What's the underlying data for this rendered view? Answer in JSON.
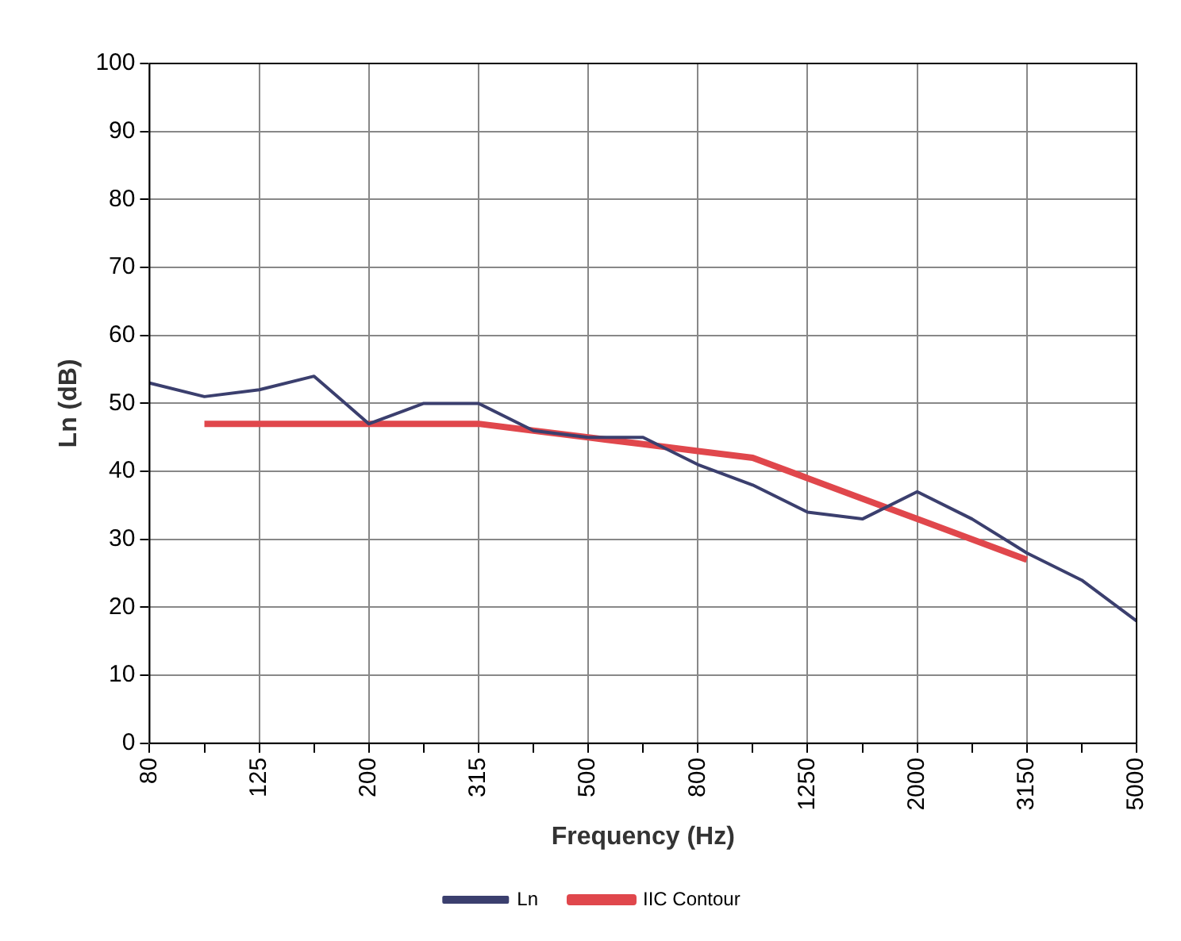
{
  "chart_data": {
    "type": "line",
    "xlabel": "Frequency (Hz)",
    "ylabel": "Ln (dB)",
    "categories": [
      "80",
      null,
      "125",
      null,
      "200",
      null,
      "315",
      null,
      "500",
      null,
      "800",
      null,
      "1250",
      null,
      "2000",
      null,
      "3150",
      null,
      "5000"
    ],
    "series": [
      {
        "name": "Ln",
        "color": "#3b3f6e",
        "values": [
          53,
          51,
          52,
          54,
          47,
          50,
          50,
          46,
          45,
          45,
          41,
          38,
          34,
          33,
          37,
          33,
          28,
          24,
          18
        ]
      },
      {
        "name": "IIC Contour",
        "color": "#e0474c",
        "values": [
          null,
          47,
          47,
          47,
          47,
          47,
          47,
          46,
          45,
          44,
          43,
          42,
          39,
          36,
          33,
          30,
          27,
          null,
          null
        ]
      }
    ],
    "ylim": [
      0,
      100
    ],
    "yticks": [
      0,
      10,
      20,
      30,
      40,
      50,
      60,
      70,
      80,
      90,
      100
    ],
    "grid": true,
    "legend": "bottom",
    "marker": "none",
    "line_style": "solid"
  }
}
